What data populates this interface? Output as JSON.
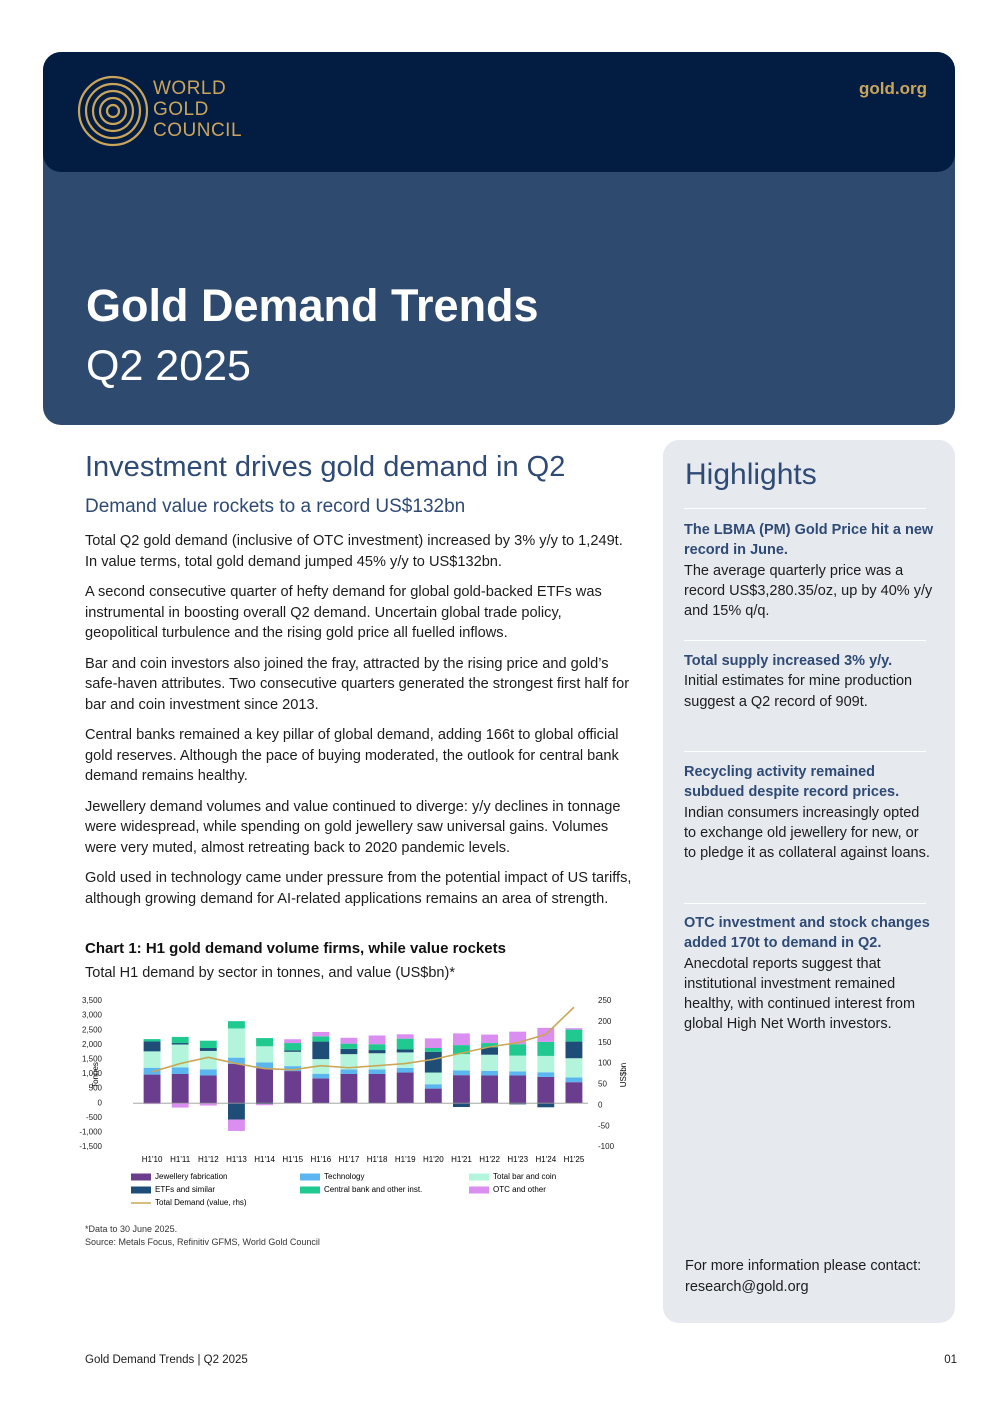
{
  "header": {
    "logo": [
      "WORLD",
      "GOLD",
      "COUNCIL"
    ],
    "url": "gold.org",
    "title": "Gold Demand Trends",
    "subtitle": "Q2 2025"
  },
  "article": {
    "heading": "Investment drives gold demand in Q2",
    "subheading": "Demand value rockets to a record US$132bn",
    "paragraphs": [
      "Total Q2 gold demand (inclusive of OTC investment) increased by 3% y/y to 1,249t. In value terms, total gold demand jumped 45% y/y to US$132bn.",
      "A second consecutive quarter of hefty demand for global gold-backed ETFs was instrumental in boosting overall Q2 demand. Uncertain global trade policy, geopolitical turbulence and the rising gold price all fuelled inflows.",
      "Bar and coin investors also joined the fray, attracted by the rising price and gold’s safe-haven attributes. Two consecutive quarters generated the strongest first half for bar and coin investment since 2013.",
      "Central banks remained a key pillar of global demand, adding 166t to global official gold reserves. Although the pace of buying moderated, the outlook for central bank demand remains healthy.",
      "Jewellery demand volumes and value continued to diverge: y/y declines in tonnage were widespread, while spending on gold jewellery saw universal gains. Volumes were very muted, almost retreating back to 2020 pandemic levels.",
      "Gold used in technology came under pressure from the potential impact of US tariffs, although growing demand for AI-related applications remains an area of strength."
    ]
  },
  "chart_data": {
    "type": "bar",
    "stacked": true,
    "title": "Chart 1: H1 gold demand volume firms, while value rockets",
    "subtitle": "Total H1 demand by sector in tonnes, and value (US$bn)*",
    "y_label": "Tonnes",
    "y2_label": "US$bn",
    "categories": [
      "H1'10",
      "H1'11",
      "H1'12",
      "H1'13",
      "H1'14",
      "H1'15",
      "H1'16",
      "H1'17",
      "H1'18",
      "H1'19",
      "H1'20",
      "H1'21",
      "H1'22",
      "H1'23",
      "H1'24",
      "H1'25"
    ],
    "series": [
      {
        "name": "Jewellery fabrication",
        "color": "#6b3d8e",
        "values": [
          980,
          1000,
          950,
          1350,
          1200,
          1100,
          850,
          1000,
          1000,
          1050,
          500,
          960,
          950,
          950,
          900,
          720
        ]
      },
      {
        "name": "Technology",
        "color": "#5bb6f0",
        "values": [
          235,
          230,
          210,
          210,
          200,
          170,
          160,
          160,
          160,
          160,
          150,
          160,
          160,
          140,
          160,
          160
        ]
      },
      {
        "name": "Total bar and coin",
        "color": "#b3f5dc",
        "values": [
          560,
          780,
          630,
          1000,
          550,
          490,
          500,
          520,
          550,
          530,
          400,
          560,
          550,
          540,
          560,
          660
        ]
      },
      {
        "name": "ETFs and similar",
        "color": "#1e4d78",
        "values": [
          340,
          50,
          100,
          -560,
          -30,
          50,
          600,
          180,
          110,
          100,
          710,
          -130,
          250,
          -40,
          -140,
          570
        ]
      },
      {
        "name": "Central bank and other inst.",
        "color": "#1fc98f",
        "values": [
          80,
          210,
          250,
          250,
          280,
          250,
          180,
          180,
          200,
          370,
          130,
          310,
          150,
          390,
          480,
          410
        ]
      },
      {
        "name": "OTC and other",
        "color": "#d98ef0",
        "values": [
          -30,
          -150,
          -80,
          -390,
          -40,
          130,
          150,
          200,
          300,
          150,
          330,
          400,
          290,
          430,
          480,
          50
        ]
      },
      {
        "name": "Total Demand (value, rhs)",
        "color": "#c9a756",
        "type": "line",
        "axis": "y2",
        "values": [
          80,
          100,
          115,
          100,
          88,
          85,
          95,
          90,
          95,
          100,
          110,
          125,
          140,
          150,
          170,
          235
        ]
      }
    ],
    "ylim": [
      -1500,
      3500
    ],
    "yticks": [
      {
        "value": -1500,
        "label": "-1,500"
      },
      {
        "value": -1000,
        "label": "-1,000"
      },
      -500,
      0,
      500,
      {
        "value": 1000,
        "label": "1,000"
      },
      {
        "value": 1500,
        "label": "1,500"
      },
      {
        "value": 2000,
        "label": "2,000"
      },
      {
        "value": 2500,
        "label": "2,500"
      },
      {
        "value": 3000,
        "label": "3,000"
      },
      {
        "value": 3500,
        "label": "3,500"
      }
    ],
    "y2lim": [
      -100,
      250
    ],
    "y2ticks": [
      -100,
      -50,
      0,
      50,
      100,
      150,
      200,
      250
    ],
    "grid": false,
    "notes": [
      "*Data to 30 June 2025.",
      "Source: Metals Focus, Refinitiv GFMS, World Gold Council"
    ]
  },
  "highlights": {
    "title": "Highlights",
    "items": [
      {
        "title": "The LBMA (PM) Gold Price hit a new record in June.",
        "text": "The average quarterly price was a record US$3,280.35/oz, up by 40% y/y and 15% q/q."
      },
      {
        "title": "Total supply increased 3% y/y.",
        "text": "Initial estimates for mine production suggest a Q2 record of 909t."
      },
      {
        "title": "Recycling activity remained subdued despite record prices.",
        "text": "Indian consumers increasingly opted to exchange old jewellery for new, or to pledge it as collateral against loans."
      },
      {
        "title": "OTC investment and stock changes added 170t to demand in Q2.",
        "text": "Anecdotal reports suggest that institutional investment remained healthy, with continued interest from global High Net Worth investors."
      }
    ],
    "contact": "For more information please contact: research@gold.org"
  },
  "footer": {
    "left": "Gold Demand Trends | Q2 2025",
    "page": "01"
  }
}
